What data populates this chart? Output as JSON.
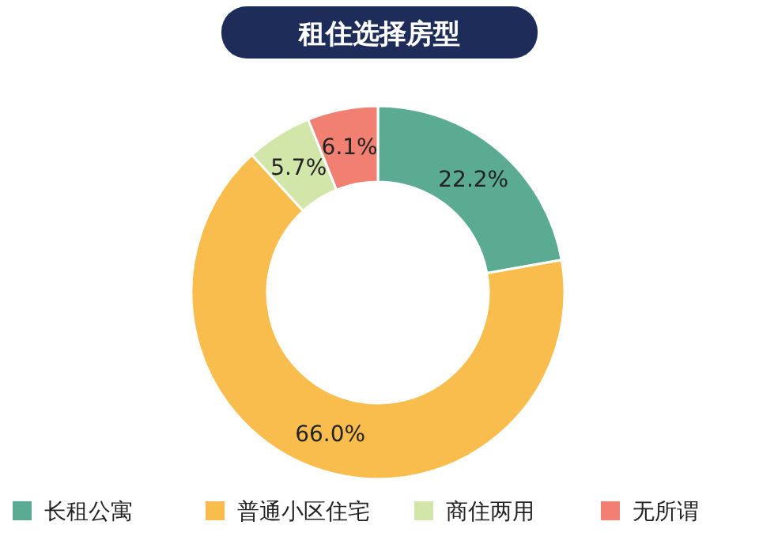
{
  "chart_data": {
    "type": "donut",
    "title": "租住选择房型",
    "categories": [
      "长租公寓",
      "普通小区住宅",
      "商住两用",
      "无所谓"
    ],
    "values": [
      22.2,
      66.0,
      5.7,
      6.1
    ],
    "value_labels": [
      "22.2%",
      "66.0%",
      "5.7%",
      "6.1%"
    ],
    "colors": [
      "#5aab92",
      "#f9bd4d",
      "#d3e6a9",
      "#f28072"
    ],
    "legend": "bottom"
  }
}
